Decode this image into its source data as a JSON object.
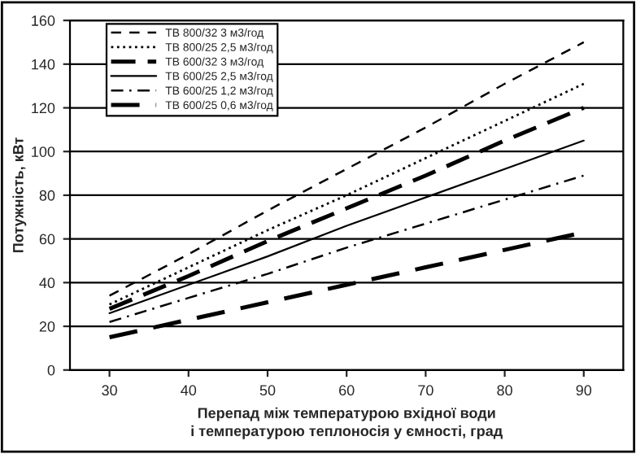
{
  "chart_data": {
    "type": "line",
    "xlabel": "Перепад між температурою вхідної води\nі температурою теплоносія у ємності, град",
    "ylabel": "Потужність, кВт",
    "x": [
      30,
      40,
      50,
      60,
      70,
      80,
      90
    ],
    "series": [
      {
        "name": "ТВ 800/32 3 м3/год",
        "color": "#000000",
        "line_style": "dashed",
        "values": [
          34,
          53,
          73,
          92,
          111,
          131,
          150
        ]
      },
      {
        "name": "ТВ 800/25 2,5 м3/год",
        "color": "#000000",
        "line_style": "dotted",
        "values": [
          30,
          47,
          64,
          80,
          97,
          114,
          131
        ]
      },
      {
        "name": "ТВ 600/32 3 м3/год",
        "color": "#000000",
        "line_style": "dashed",
        "values": [
          28,
          43,
          59,
          74,
          89,
          105,
          120
        ]
      },
      {
        "name": "ТВ 600/25 2,5 м3/год",
        "color": "#000000",
        "line_style": "solid",
        "values": [
          26,
          39,
          52,
          66,
          79,
          92,
          105
        ]
      },
      {
        "name": "ТВ 600/25 1,2 м3/год",
        "color": "#000000",
        "line_style": "dashed",
        "values": [
          22,
          33,
          44,
          56,
          67,
          78,
          89
        ]
      },
      {
        "name": "ТВ 600/25 0,6 м3/год",
        "color": "#000000",
        "line_style": "dashed",
        "values": [
          15,
          23,
          31,
          39,
          47,
          55,
          63
        ]
      }
    ],
    "xlim": [
      25,
      95
    ],
    "xticks": [
      30,
      40,
      50,
      60,
      70,
      80,
      90
    ],
    "ylim": [
      0,
      160
    ],
    "yticks": [
      0,
      20,
      40,
      60,
      80,
      100,
      120,
      140,
      160
    ],
    "grid": "y",
    "legend": "top left",
    "marker": "none"
  }
}
